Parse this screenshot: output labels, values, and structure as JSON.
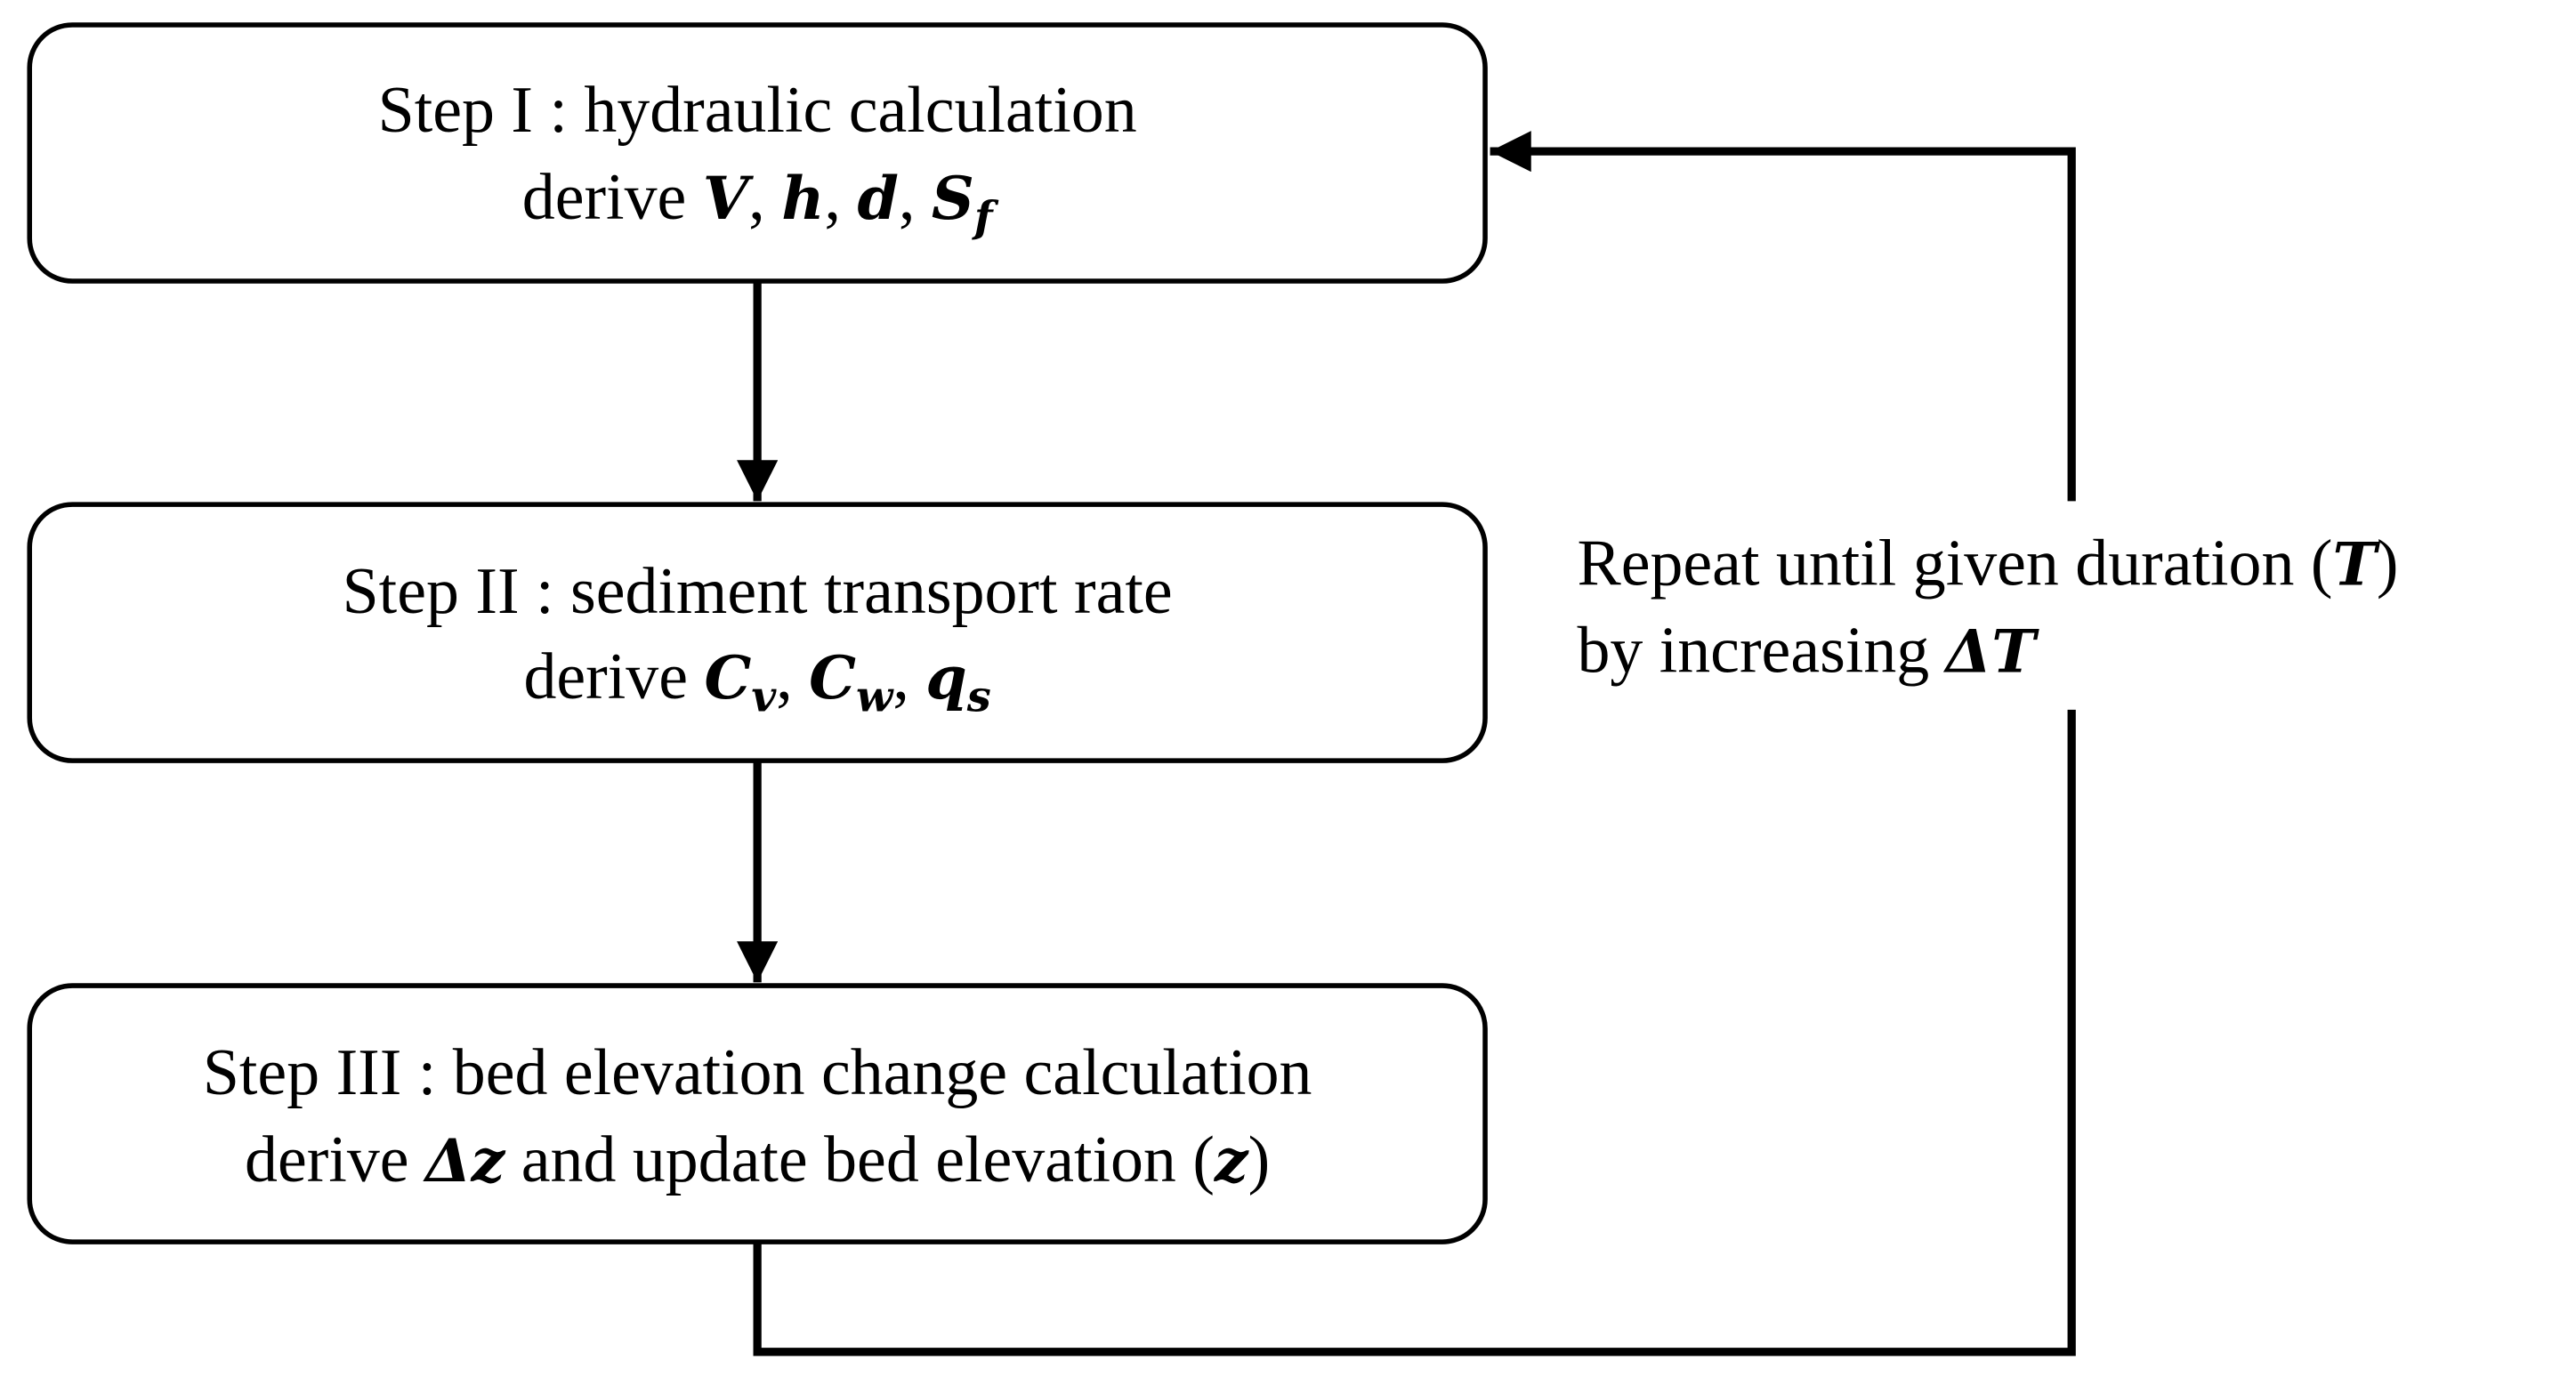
{
  "nodes": [
    {
      "title": "Step I : hydraulic calculation",
      "derive": [
        "derive ",
        "V",
        ", ",
        "h",
        ", ",
        "d",
        ", ",
        "S",
        "f"
      ]
    },
    {
      "title": "Step II : sediment transport rate",
      "derive": [
        "derive ",
        "C",
        "v",
        ", ",
        "C",
        "w",
        ", ",
        "q",
        "s"
      ]
    },
    {
      "title": "Step III : bed elevation change calculation",
      "derive": [
        "derive ",
        "Δz",
        " and update bed elevation (",
        "z",
        ")"
      ]
    }
  ],
  "loop": {
    "line1": [
      "Repeat until given duration (",
      "T",
      ")"
    ],
    "line2": [
      "by increasing ",
      "ΔT"
    ]
  }
}
